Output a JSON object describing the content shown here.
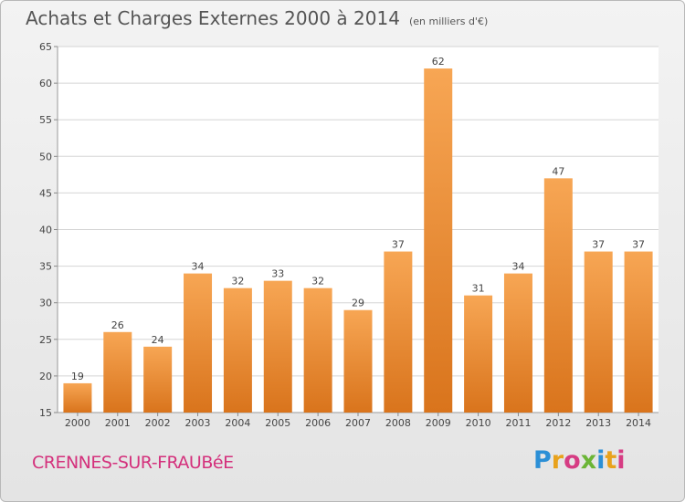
{
  "title": "Achats et Charges Externes 2000 à 2014",
  "subtitle": "(en milliers d'€)",
  "commune": "CRENNES-SUR-FRAUBéE",
  "logo": {
    "text": "Proxiti",
    "name": "proxiti-logo"
  },
  "colors": {
    "bar_light": "#f7a654",
    "bar_dark": "#d9741c",
    "grid": "#d5d5d5"
  },
  "chart_data": {
    "type": "bar",
    "categories": [
      "2000",
      "2001",
      "2002",
      "2003",
      "2004",
      "2005",
      "2006",
      "2007",
      "2008",
      "2009",
      "2010",
      "2011",
      "2012",
      "2013",
      "2014"
    ],
    "values": [
      19,
      26,
      24,
      34,
      32,
      33,
      32,
      29,
      37,
      62,
      31,
      34,
      47,
      37,
      37
    ],
    "ylim": [
      15,
      65
    ],
    "yticks": [
      15,
      20,
      25,
      30,
      35,
      40,
      45,
      50,
      55,
      60,
      65
    ],
    "grid": true,
    "data_labels": true
  }
}
